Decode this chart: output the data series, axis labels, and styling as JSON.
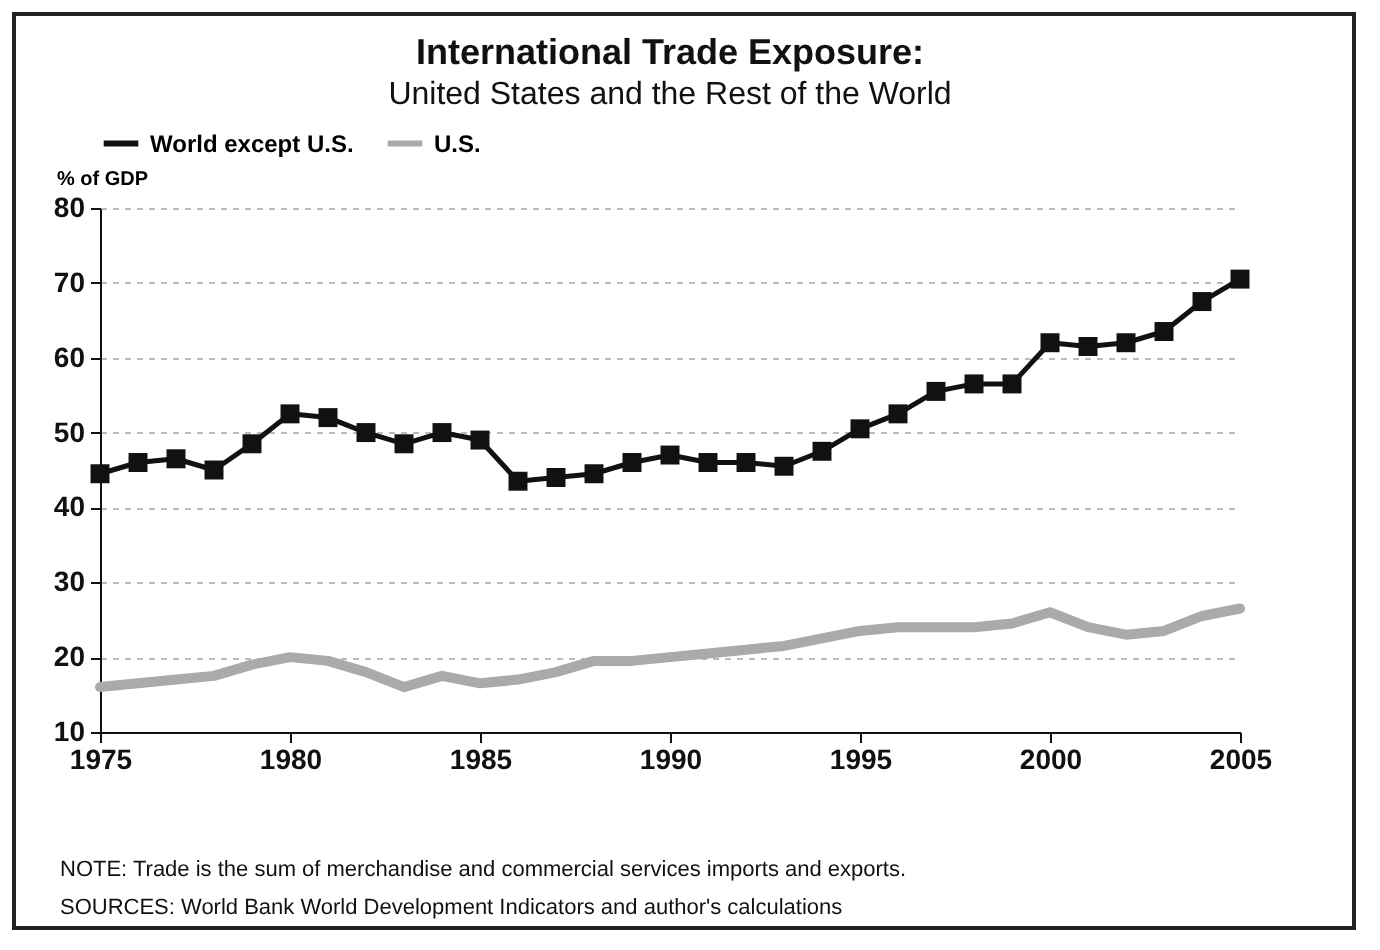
{
  "chart_data": {
    "type": "line",
    "title": "International Trade Exposure:",
    "subtitle": "United States and the Rest of the World",
    "ylabel": "% of GDP",
    "x": [
      1975,
      1976,
      1977,
      1978,
      1979,
      1980,
      1981,
      1982,
      1983,
      1984,
      1985,
      1986,
      1987,
      1988,
      1989,
      1990,
      1991,
      1992,
      1993,
      1994,
      1995,
      1996,
      1997,
      1998,
      1999,
      2000,
      2001,
      2002,
      2003,
      2004,
      2005
    ],
    "series": [
      {
        "name": "World except U.S.",
        "color": "#111111",
        "marker": "square",
        "values": [
          44.5,
          46,
          46.5,
          45,
          48.5,
          52.5,
          52,
          50,
          48.5,
          50,
          49,
          43.5,
          44,
          44.5,
          46,
          47,
          46,
          46,
          45.5,
          47.5,
          50.5,
          52.5,
          55.5,
          56.5,
          56.5,
          62,
          61.5,
          62,
          63.5,
          67.5,
          70.5
        ]
      },
      {
        "name": "U.S.",
        "color": "#aaaaaa",
        "marker": "none",
        "values": [
          16,
          16.5,
          17,
          17.5,
          19,
          20,
          19.5,
          18,
          16,
          17.5,
          16.5,
          17,
          18,
          19.5,
          19.5,
          20,
          20.5,
          21,
          21.5,
          22.5,
          23.5,
          24,
          24,
          24,
          24.5,
          26,
          24,
          23,
          23.5,
          25.5,
          26.5
        ]
      }
    ],
    "xlim": [
      1975,
      2005
    ],
    "xticks": [
      1975,
      1980,
      1985,
      1990,
      1995,
      2000,
      2005
    ],
    "ylim": [
      10,
      80
    ],
    "yticks": [
      10,
      20,
      30,
      40,
      50,
      60,
      70,
      80
    ],
    "grid": "y",
    "legend": "top left",
    "line_style": "solid",
    "annotations": [
      "NOTE:  Trade is the sum of merchandise and commercial services imports and exports.",
      "SOURCES:  World Bank World Development Indicators and author's calculations"
    ]
  }
}
